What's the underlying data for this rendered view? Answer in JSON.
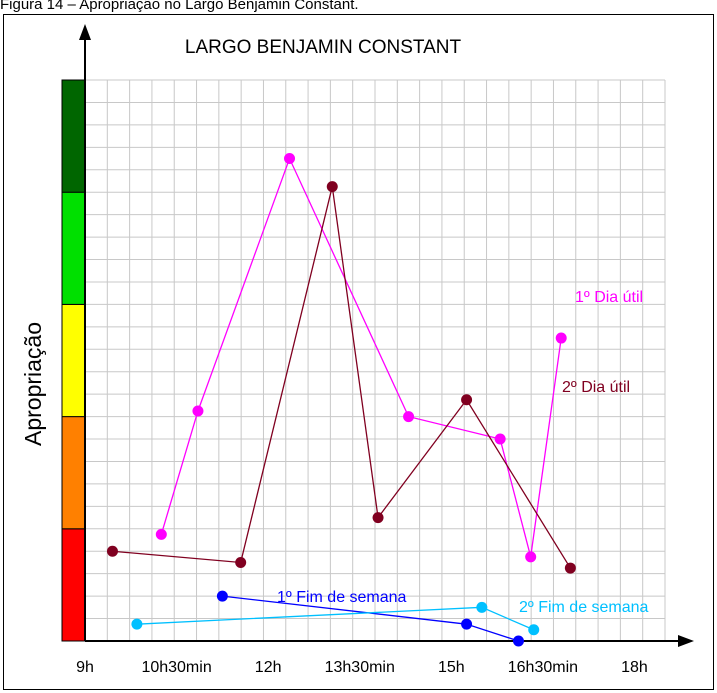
{
  "caption": "Figura 14 – Apropriação no Largo Benjamin Constant.",
  "chart_data": {
    "type": "line",
    "title": "LARGO BENJAMIN CONSTANT",
    "xlabel": "",
    "ylabel": "Apropriação",
    "x_ticks": [
      "9h",
      "10h30min",
      "12h",
      "13h30min",
      "15h",
      "16h30min",
      "18h"
    ],
    "x_tick_values": [
      9,
      10.5,
      12,
      13.5,
      15,
      16.5,
      18
    ],
    "xlim": [
      9,
      18.5
    ],
    "ylim": [
      0,
      5
    ],
    "grid": true,
    "y_scale_colors": [
      "#ff0000",
      "#ff8000",
      "#ffff00",
      "#00e000",
      "#006600"
    ],
    "series": [
      {
        "name": "1º Dia útil",
        "color": "#ff00ff",
        "x": [
          10.25,
          10.85,
          12.35,
          14.3,
          15.8,
          16.3,
          16.8
        ],
        "y": [
          0.95,
          2.05,
          4.3,
          2.0,
          1.8,
          0.75,
          2.7
        ]
      },
      {
        "name": "2º Dia útil",
        "color": "#800020",
        "x": [
          9.45,
          11.55,
          13.05,
          13.8,
          15.25,
          16.95
        ],
        "y": [
          0.8,
          0.7,
          4.05,
          1.1,
          2.15,
          0.65
        ]
      },
      {
        "name": "1º Fim de semana",
        "color": "#0000ff",
        "x": [
          11.25,
          15.25,
          16.1
        ],
        "y": [
          0.4,
          0.15,
          0.0
        ]
      },
      {
        "name": "2º Fim de semana",
        "color": "#00c0ff",
        "x": [
          9.85,
          15.5,
          16.35
        ],
        "y": [
          0.15,
          0.3,
          0.1
        ]
      }
    ]
  }
}
